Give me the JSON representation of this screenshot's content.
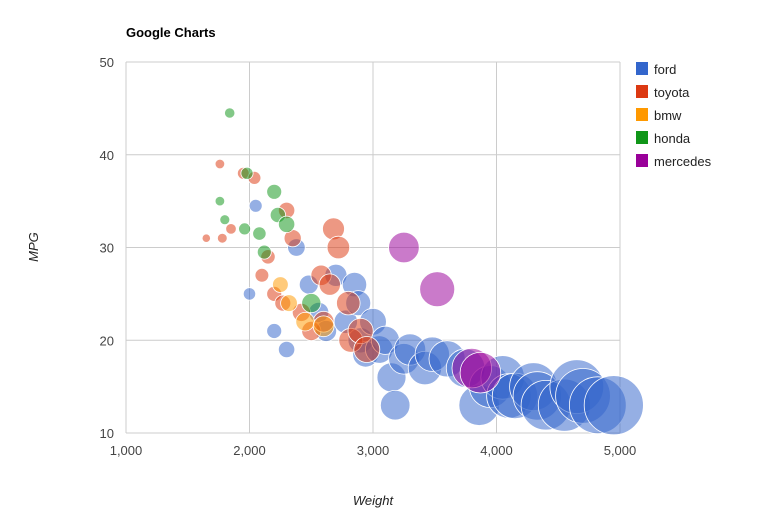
{
  "chart_data": {
    "type": "scatter",
    "title": "Google Charts",
    "xlabel": "Weight",
    "ylabel": "MPG",
    "xlim": [
      1000,
      5000
    ],
    "ylim": [
      10,
      50
    ],
    "xticks": [
      1000,
      2000,
      3000,
      4000,
      5000
    ],
    "yticks": [
      10,
      20,
      30,
      40,
      50
    ],
    "xtick_labels": [
      "1,000",
      "2,000",
      "3,000",
      "4,000",
      "5,000"
    ],
    "ytick_labels": [
      "10",
      "20",
      "30",
      "40",
      "50"
    ],
    "grid": true,
    "legend_position": "right",
    "size_encoding": "bubble radius grows with weight",
    "series": [
      {
        "name": "ford",
        "color": "#3366cc",
        "points": [
          [
            2000,
            25
          ],
          [
            2050,
            34.5
          ],
          [
            2200,
            21
          ],
          [
            2300,
            19
          ],
          [
            2380,
            30
          ],
          [
            2480,
            26
          ],
          [
            2560,
            23
          ],
          [
            2620,
            21
          ],
          [
            2700,
            27
          ],
          [
            2780,
            22
          ],
          [
            2850,
            26
          ],
          [
            2880,
            24
          ],
          [
            2900,
            20
          ],
          [
            2940,
            18.5
          ],
          [
            3000,
            22
          ],
          [
            3050,
            19
          ],
          [
            3100,
            20
          ],
          [
            3150,
            16
          ],
          [
            3180,
            13
          ],
          [
            3250,
            18
          ],
          [
            3300,
            19
          ],
          [
            3420,
            17
          ],
          [
            3480,
            18.5
          ],
          [
            3600,
            18
          ],
          [
            3750,
            17
          ],
          [
            3860,
            13
          ],
          [
            3950,
            15
          ],
          [
            4050,
            16
          ],
          [
            4100,
            14
          ],
          [
            4150,
            14
          ],
          [
            4300,
            15
          ],
          [
            4330,
            14
          ],
          [
            4400,
            13
          ],
          [
            4550,
            13
          ],
          [
            4650,
            15
          ],
          [
            4700,
            14
          ],
          [
            4820,
            13
          ],
          [
            4950,
            13
          ]
        ]
      },
      {
        "name": "toyota",
        "color": "#dc3912",
        "points": [
          [
            1650,
            31
          ],
          [
            1760,
            39
          ],
          [
            1780,
            31
          ],
          [
            1850,
            32
          ],
          [
            1950,
            38
          ],
          [
            2040,
            37.5
          ],
          [
            2100,
            27
          ],
          [
            2150,
            29
          ],
          [
            2200,
            25
          ],
          [
            2270,
            24
          ],
          [
            2300,
            34
          ],
          [
            2350,
            31
          ],
          [
            2420,
            23
          ],
          [
            2500,
            21
          ],
          [
            2580,
            27
          ],
          [
            2600,
            22
          ],
          [
            2650,
            26
          ],
          [
            2680,
            32
          ],
          [
            2720,
            30
          ],
          [
            2800,
            24
          ],
          [
            2820,
            20
          ],
          [
            2900,
            21
          ],
          [
            2950,
            19
          ]
        ]
      },
      {
        "name": "bmw",
        "color": "#ff9900",
        "points": [
          [
            2250,
            26
          ],
          [
            2320,
            24
          ],
          [
            2450,
            22
          ],
          [
            2600,
            21.5
          ]
        ]
      },
      {
        "name": "honda",
        "color": "#109618",
        "points": [
          [
            1840,
            44.5
          ],
          [
            1760,
            35
          ],
          [
            1800,
            33
          ],
          [
            1960,
            32
          ],
          [
            1980,
            38
          ],
          [
            2080,
            31.5
          ],
          [
            2120,
            29.5
          ],
          [
            2200,
            36
          ],
          [
            2230,
            33.5
          ],
          [
            2300,
            32.5
          ],
          [
            2500,
            24
          ]
        ]
      },
      {
        "name": "mercedes",
        "color": "#990099",
        "points": [
          [
            3250,
            30
          ],
          [
            3520,
            25.5
          ],
          [
            3800,
            17
          ],
          [
            3870,
            16.5
          ]
        ]
      }
    ]
  }
}
